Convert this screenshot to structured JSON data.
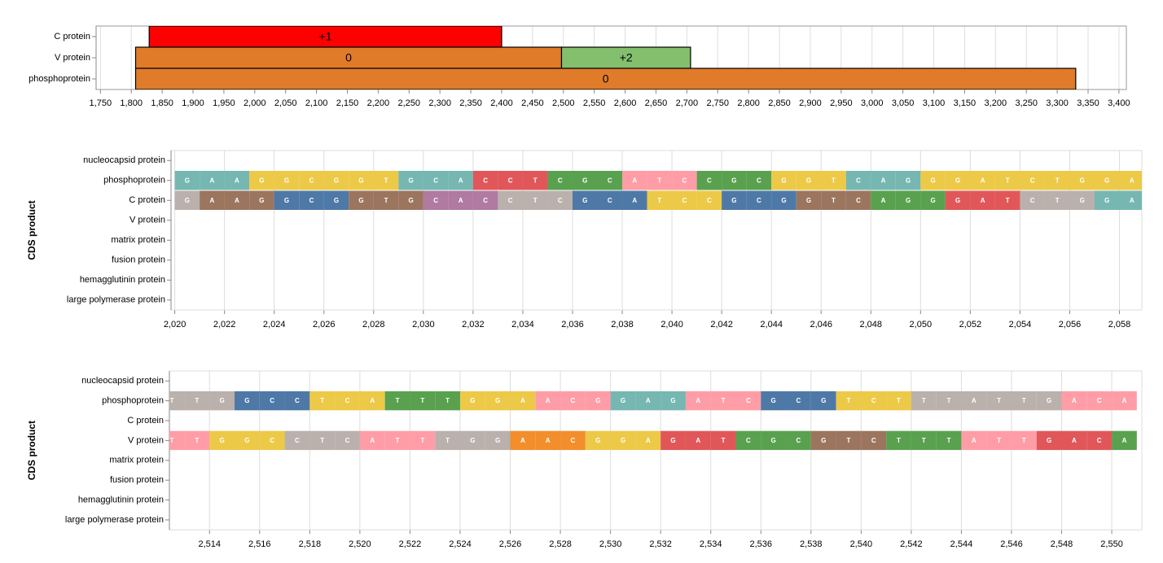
{
  "chart_data": [
    {
      "type": "gantt",
      "categories": [
        "C protein",
        "V protein",
        "phosphoprotein"
      ],
      "bars": [
        {
          "row": "C protein",
          "start": 1829,
          "end": 2400,
          "label": "+1",
          "color": "#ff0000"
        },
        {
          "row": "V protein",
          "start": 1807,
          "end": 2497,
          "label": "0",
          "color": "#e07b2a"
        },
        {
          "row": "V protein",
          "start": 2497,
          "end": 2706,
          "label": "+2",
          "color": "#84bf6e"
        },
        {
          "row": "phosphoprotein",
          "start": 1807,
          "end": 3330,
          "label": "0",
          "color": "#e07b2a"
        }
      ],
      "xlim": [
        1743,
        3412
      ],
      "xticks": [
        {
          "value": 1750,
          "label": "1,750"
        },
        {
          "value": 1800,
          "label": "1,800"
        },
        {
          "value": 1850,
          "label": "1,850"
        },
        {
          "value": 1900,
          "label": "1,900"
        },
        {
          "value": 1950,
          "label": "1,950"
        },
        {
          "value": 2000,
          "label": "2,000"
        },
        {
          "value": 2050,
          "label": "2,050"
        },
        {
          "value": 2100,
          "label": "2,100"
        },
        {
          "value": 2150,
          "label": "2,150"
        },
        {
          "value": 2200,
          "label": "2,200"
        },
        {
          "value": 2250,
          "label": "2,250"
        },
        {
          "value": 2300,
          "label": "2,300"
        },
        {
          "value": 2350,
          "label": "2,350"
        },
        {
          "value": 2400,
          "label": "2,400"
        },
        {
          "value": 2450,
          "label": "2,450"
        },
        {
          "value": 2500,
          "label": "2,500"
        },
        {
          "value": 2550,
          "label": "2,550"
        },
        {
          "value": 2600,
          "label": "2,600"
        },
        {
          "value": 2650,
          "label": "2,650"
        },
        {
          "value": 2700,
          "label": "2,700"
        },
        {
          "value": 2750,
          "label": "2,750"
        },
        {
          "value": 2800,
          "label": "2,800"
        },
        {
          "value": 2850,
          "label": "2,850"
        },
        {
          "value": 2900,
          "label": "2,900"
        },
        {
          "value": 2950,
          "label": "2,950"
        },
        {
          "value": 3000,
          "label": "3,000"
        },
        {
          "value": 3050,
          "label": "3,050"
        },
        {
          "value": 3100,
          "label": "3,100"
        },
        {
          "value": 3150,
          "label": "3,150"
        },
        {
          "value": 3200,
          "label": "3,200"
        },
        {
          "value": 3250,
          "label": "3,250"
        },
        {
          "value": 3300,
          "label": "3,300"
        },
        {
          "value": 3350,
          "label": "3,350"
        },
        {
          "value": 3400,
          "label": "3,400"
        }
      ],
      "grid": true
    },
    {
      "type": "sequence",
      "y_label": "CDS product",
      "categories": [
        "nucleocapsid protein",
        "phosphoprotein",
        "C protein",
        "V protein",
        "matrix protein",
        "fusion protein",
        "hemagglutinin protein",
        "large polymerase protein"
      ],
      "series": [
        {
          "name": "phosphoprotein",
          "x": [
            2020,
            2021,
            2022,
            2023,
            2024,
            2025,
            2026,
            2027,
            2028,
            2029,
            2030,
            2031,
            2032,
            2033,
            2034,
            2035,
            2036,
            2037,
            2038,
            2039,
            2040,
            2041,
            2042,
            2043,
            2044,
            2045,
            2046,
            2047,
            2048,
            2049,
            2050,
            2051,
            2052,
            2053,
            2054,
            2055,
            2056,
            2057,
            2058
          ],
          "bases": [
            "G",
            "A",
            "A",
            "G",
            "G",
            "C",
            "G",
            "G",
            "T",
            "G",
            "C",
            "A",
            "C",
            "C",
            "T",
            "C",
            "G",
            "C",
            "A",
            "T",
            "C",
            "C",
            "G",
            "C",
            "G",
            "G",
            "T",
            "C",
            "A",
            "G",
            "G",
            "G",
            "A",
            "T",
            "C",
            "T",
            "G",
            "G",
            "A"
          ],
          "colors": [
            "#76b7b2",
            "#76b7b2",
            "#76b7b2",
            "#edc948",
            "#edc948",
            "#edc948",
            "#edc948",
            "#edc948",
            "#edc948",
            "#76b7b2",
            "#76b7b2",
            "#76b7b2",
            "#e15759",
            "#e15759",
            "#e15759",
            "#59a14f",
            "#59a14f",
            "#59a14f",
            "#ff9da7",
            "#ff9da7",
            "#ff9da7",
            "#59a14f",
            "#59a14f",
            "#59a14f",
            "#edc948",
            "#edc948",
            "#edc948",
            "#76b7b2",
            "#76b7b2",
            "#76b7b2",
            "#edc948",
            "#edc948",
            "#edc948",
            "#edc948",
            "#edc948",
            "#edc948",
            "#edc948",
            "#edc948",
            "#edc948"
          ]
        },
        {
          "name": "C protein",
          "x": [
            2020,
            2021,
            2022,
            2023,
            2024,
            2025,
            2026,
            2027,
            2028,
            2029,
            2030,
            2031,
            2032,
            2033,
            2034,
            2035,
            2036,
            2037,
            2038,
            2039,
            2040,
            2041,
            2042,
            2043,
            2044,
            2045,
            2046,
            2047,
            2048,
            2049,
            2050,
            2051,
            2052,
            2053,
            2054,
            2055,
            2056,
            2057,
            2058
          ],
          "bases": [
            "G",
            "A",
            "A",
            "G",
            "G",
            "C",
            "G",
            "G",
            "T",
            "G",
            "C",
            "A",
            "C",
            "C",
            "T",
            "C",
            "G",
            "C",
            "A",
            "T",
            "C",
            "C",
            "G",
            "C",
            "G",
            "G",
            "T",
            "C",
            "A",
            "G",
            "G",
            "G",
            "A",
            "T",
            "C",
            "T",
            "G",
            "G",
            "A"
          ],
          "colors": [
            "#bab0ac",
            "#9c755f",
            "#9c755f",
            "#9c755f",
            "#4e79a7",
            "#4e79a7",
            "#4e79a7",
            "#9c755f",
            "#9c755f",
            "#9c755f",
            "#b07aa1",
            "#b07aa1",
            "#b07aa1",
            "#bab0ac",
            "#bab0ac",
            "#bab0ac",
            "#4e79a7",
            "#4e79a7",
            "#4e79a7",
            "#edc948",
            "#edc948",
            "#edc948",
            "#4e79a7",
            "#4e79a7",
            "#4e79a7",
            "#9c755f",
            "#9c755f",
            "#9c755f",
            "#59a14f",
            "#59a14f",
            "#59a14f",
            "#e15759",
            "#e15759",
            "#e15759",
            "#bab0ac",
            "#bab0ac",
            "#bab0ac",
            "#76b7b2",
            "#76b7b2"
          ]
        }
      ],
      "xlim": [
        2019.85,
        2058.9
      ],
      "xticks": [
        {
          "value": 2020,
          "label": "2,020"
        },
        {
          "value": 2022,
          "label": "2,022"
        },
        {
          "value": 2024,
          "label": "2,024"
        },
        {
          "value": 2026,
          "label": "2,026"
        },
        {
          "value": 2028,
          "label": "2,028"
        },
        {
          "value": 2030,
          "label": "2,030"
        },
        {
          "value": 2032,
          "label": "2,032"
        },
        {
          "value": 2034,
          "label": "2,034"
        },
        {
          "value": 2036,
          "label": "2,036"
        },
        {
          "value": 2038,
          "label": "2,038"
        },
        {
          "value": 2040,
          "label": "2,040"
        },
        {
          "value": 2042,
          "label": "2,042"
        },
        {
          "value": 2044,
          "label": "2,044"
        },
        {
          "value": 2046,
          "label": "2,046"
        },
        {
          "value": 2048,
          "label": "2,048"
        },
        {
          "value": 2050,
          "label": "2,050"
        },
        {
          "value": 2052,
          "label": "2,052"
        },
        {
          "value": 2054,
          "label": "2,054"
        },
        {
          "value": 2056,
          "label": "2,056"
        },
        {
          "value": 2058,
          "label": "2,058"
        }
      ],
      "grid": true
    },
    {
      "type": "sequence",
      "y_label": "CDS product",
      "categories": [
        "nucleocapsid protein",
        "phosphoprotein",
        "C protein",
        "V protein",
        "matrix protein",
        "fusion protein",
        "hemagglutinin protein",
        "large polymerase protein"
      ],
      "series": [
        {
          "name": "phosphoprotein",
          "x": [
            2512,
            2513,
            2514,
            2515,
            2516,
            2517,
            2518,
            2519,
            2520,
            2521,
            2522,
            2523,
            2524,
            2525,
            2526,
            2527,
            2528,
            2529,
            2530,
            2531,
            2532,
            2533,
            2534,
            2535,
            2536,
            2537,
            2538,
            2539,
            2540,
            2541,
            2542,
            2543,
            2544,
            2545,
            2546,
            2547,
            2548,
            2549,
            2550
          ],
          "bases": [
            "T",
            "T",
            "G",
            "G",
            "C",
            "C",
            "T",
            "C",
            "A",
            "T",
            "T",
            "T",
            "G",
            "G",
            "A",
            "A",
            "C",
            "G",
            "G",
            "A",
            "G",
            "A",
            "T",
            "C",
            "G",
            "C",
            "G",
            "T",
            "C",
            "T",
            "T",
            "T",
            "A",
            "T",
            "T",
            "G",
            "A",
            "C",
            "A"
          ],
          "colors": [
            "#bab0ac",
            "#bab0ac",
            "#bab0ac",
            "#4e79a7",
            "#4e79a7",
            "#4e79a7",
            "#edc948",
            "#edc948",
            "#edc948",
            "#59a14f",
            "#59a14f",
            "#59a14f",
            "#edc948",
            "#edc948",
            "#edc948",
            "#ff9da7",
            "#ff9da7",
            "#ff9da7",
            "#76b7b2",
            "#76b7b2",
            "#76b7b2",
            "#ff9da7",
            "#ff9da7",
            "#ff9da7",
            "#4e79a7",
            "#4e79a7",
            "#4e79a7",
            "#edc948",
            "#edc948",
            "#edc948",
            "#bab0ac",
            "#bab0ac",
            "#bab0ac",
            "#bab0ac",
            "#bab0ac",
            "#bab0ac",
            "#ff9da7",
            "#ff9da7",
            "#ff9da7"
          ]
        },
        {
          "name": "V protein",
          "x": [
            2512,
            2513,
            2514,
            2515,
            2516,
            2517,
            2518,
            2519,
            2520,
            2521,
            2522,
            2523,
            2524,
            2525,
            2526,
            2527,
            2528,
            2529,
            2530,
            2531,
            2532,
            2533,
            2534,
            2535,
            2536,
            2537,
            2538,
            2539,
            2540,
            2541,
            2542,
            2543,
            2544,
            2545,
            2546,
            2547,
            2548,
            2549,
            2550
          ],
          "bases": [
            "T",
            "T",
            "G",
            "G",
            "C",
            "C",
            "T",
            "C",
            "A",
            "T",
            "T",
            "T",
            "G",
            "G",
            "A",
            "A",
            "C",
            "G",
            "G",
            "A",
            "G",
            "A",
            "T",
            "C",
            "G",
            "C",
            "G",
            "T",
            "C",
            "T",
            "T",
            "T",
            "A",
            "T",
            "T",
            "G",
            "A",
            "C",
            "A"
          ],
          "colors": [
            "#ff9da7",
            "#ff9da7",
            "#edc948",
            "#edc948",
            "#edc948",
            "#bab0ac",
            "#bab0ac",
            "#bab0ac",
            "#ff9da7",
            "#ff9da7",
            "#ff9da7",
            "#bab0ac",
            "#bab0ac",
            "#bab0ac",
            "#f28e2b",
            "#f28e2b",
            "#f28e2b",
            "#edc948",
            "#edc948",
            "#edc948",
            "#e15759",
            "#e15759",
            "#e15759",
            "#59a14f",
            "#59a14f",
            "#59a14f",
            "#9c755f",
            "#9c755f",
            "#9c755f",
            "#59a14f",
            "#59a14f",
            "#59a14f",
            "#ff9da7",
            "#ff9da7",
            "#ff9da7",
            "#e15759",
            "#e15759",
            "#e15759",
            "#59a14f"
          ]
        }
      ],
      "xlim": [
        2512.4,
        2551.2
      ],
      "xticks": [
        {
          "value": 2514,
          "label": "2,514"
        },
        {
          "value": 2516,
          "label": "2,516"
        },
        {
          "value": 2518,
          "label": "2,518"
        },
        {
          "value": 2520,
          "label": "2,520"
        },
        {
          "value": 2522,
          "label": "2,522"
        },
        {
          "value": 2524,
          "label": "2,524"
        },
        {
          "value": 2526,
          "label": "2,526"
        },
        {
          "value": 2528,
          "label": "2,528"
        },
        {
          "value": 2530,
          "label": "2,530"
        },
        {
          "value": 2532,
          "label": "2,532"
        },
        {
          "value": 2534,
          "label": "2,534"
        },
        {
          "value": 2536,
          "label": "2,536"
        },
        {
          "value": 2538,
          "label": "2,538"
        },
        {
          "value": 2540,
          "label": "2,540"
        },
        {
          "value": 2542,
          "label": "2,542"
        },
        {
          "value": 2544,
          "label": "2,544"
        },
        {
          "value": 2546,
          "label": "2,546"
        },
        {
          "value": 2548,
          "label": "2,548"
        },
        {
          "value": 2550,
          "label": "2,550"
        }
      ],
      "grid": true
    }
  ]
}
